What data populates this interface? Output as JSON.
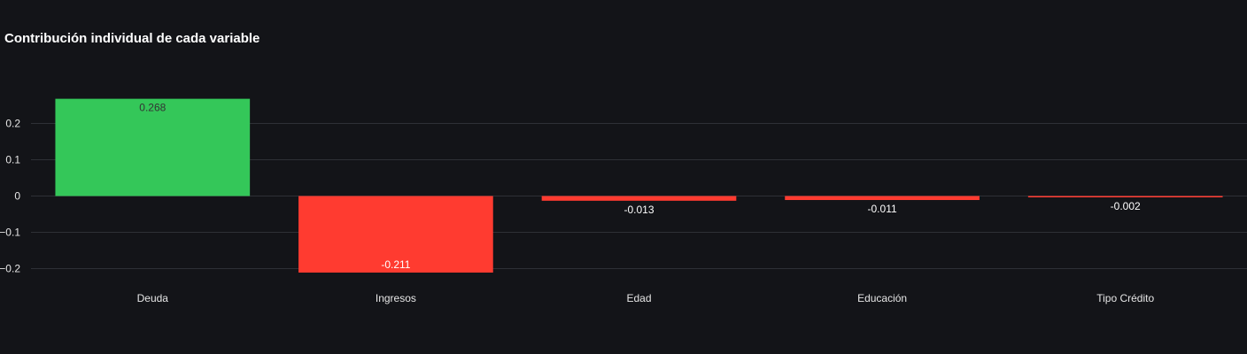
{
  "chart_data": {
    "type": "bar",
    "title": "Contribución individual de cada variable",
    "xlabel": "",
    "ylabel": "",
    "categories": [
      "Deuda",
      "Ingresos",
      "Edad",
      "Educación",
      "Tipo Crédito"
    ],
    "values": [
      0.268,
      -0.211,
      -0.013,
      -0.011,
      -0.002
    ],
    "value_labels": [
      "0.268",
      "-0.211",
      "-0.013",
      "-0.011",
      "-0.002"
    ],
    "ylim": [
      -0.21,
      0.27
    ],
    "yticks": [
      0.2,
      0.1,
      0,
      -0.1,
      -0.2
    ],
    "ytick_labels": [
      "0.2",
      "0.1",
      "0",
      "−0.1",
      "−0.2"
    ],
    "grid": true,
    "legend": "none",
    "colors": {
      "positive": "#34c759",
      "negative": "#ff3b30",
      "background": "#131418",
      "grid": "#2e3036",
      "text": "#e6e6e6"
    }
  }
}
